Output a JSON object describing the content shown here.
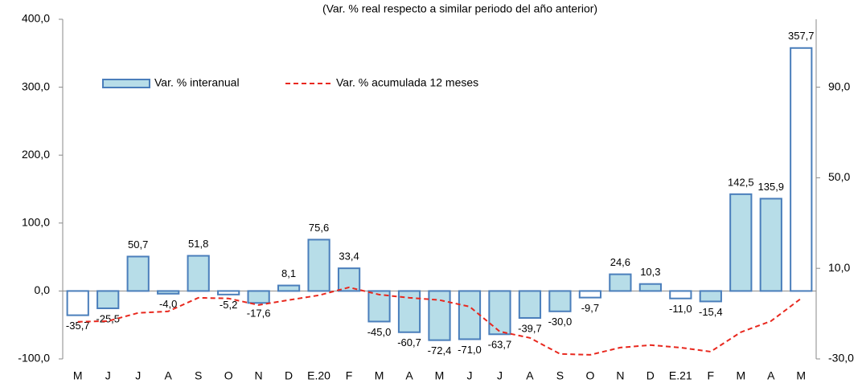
{
  "chart_data": {
    "type": "bar",
    "title": "(Var. % real respecto a similar periodo del año anterior)",
    "categories": [
      "M",
      "J",
      "J",
      "A",
      "S",
      "O",
      "N",
      "D",
      "E.20",
      "F",
      "M",
      "A",
      "M",
      "J",
      "J",
      "A",
      "S",
      "O",
      "N",
      "D",
      "E.21",
      "F",
      "M",
      "A",
      "M"
    ],
    "series": [
      {
        "name": "Var. % interanual",
        "type": "bar",
        "color": "#b7dde8",
        "edgecolor": "#4a7ebb",
        "colors": [
          "#ffffff",
          "#b7dde8",
          "#b7dde8",
          "#b7dde8",
          "#b7dde8",
          "#ffffff",
          "#b7dde8",
          "#b7dde8",
          "#b7dde8",
          "#b7dde8",
          "#b7dde8",
          "#b7dde8",
          "#b7dde8",
          "#b7dde8",
          "#b7dde8",
          "#b7dde8",
          "#b7dde8",
          "#ffffff",
          "#b7dde8",
          "#b7dde8",
          "#ffffff",
          "#b7dde8",
          "#b7dde8",
          "#b7dde8",
          "#ffffff"
        ],
        "values": [
          -35.7,
          -25.5,
          50.7,
          -4.0,
          51.8,
          -5.2,
          -17.6,
          8.1,
          75.6,
          33.4,
          -45.0,
          -60.7,
          -72.4,
          -71.0,
          -63.7,
          -39.7,
          -30.0,
          -9.7,
          24.6,
          10.3,
          -11.0,
          -15.4,
          142.5,
          135.9,
          357.7
        ],
        "value_labels": [
          "-35,7",
          "-25,5",
          "50,7",
          "-4,0",
          "51,8",
          "-5,2",
          "-17,6",
          "8,1",
          "75,6",
          "33,4",
          "-45,0",
          "-60,7",
          "-72,4",
          "-71,0",
          "-63,7",
          "-39,7",
          "-30,0",
          "-9,7",
          "24,6",
          "10,3",
          "-11,0",
          "-15,4",
          "142,5",
          "135,9",
          "357,7"
        ]
      },
      {
        "name": "Var. % acumulada 12 meses",
        "type": "line",
        "axis": "y2",
        "color": "#e8281e",
        "values": [
          -13.6,
          -13.3,
          -9.7,
          -9.0,
          -3.0,
          -3.3,
          -6.2,
          -4.0,
          -1.9,
          1.6,
          -1.6,
          -3.0,
          -4.0,
          -6.9,
          -17.9,
          -20.7,
          -27.8,
          -28.2,
          -25.0,
          -23.9,
          -25.0,
          -26.8,
          -18.2,
          -13.3,
          -3.3
        ]
      }
    ],
    "ylim": [
      -100,
      400
    ],
    "yticks": [
      {
        "value": -100,
        "label": "-100,0"
      },
      {
        "value": 0,
        "label": "0,0"
      },
      {
        "value": 100,
        "label": "100,0"
      },
      {
        "value": 200,
        "label": "200,0"
      },
      {
        "value": 300,
        "label": "300,0"
      },
      {
        "value": 400,
        "label": "400,0"
      }
    ],
    "y2lim": [
      -30,
      120
    ],
    "y2ticks": [
      {
        "value": -30,
        "label": "-30,0"
      },
      {
        "value": 10,
        "label": "10,0"
      },
      {
        "value": 50,
        "label": "50,0"
      },
      {
        "value": 90,
        "label": "90,0"
      }
    ]
  }
}
